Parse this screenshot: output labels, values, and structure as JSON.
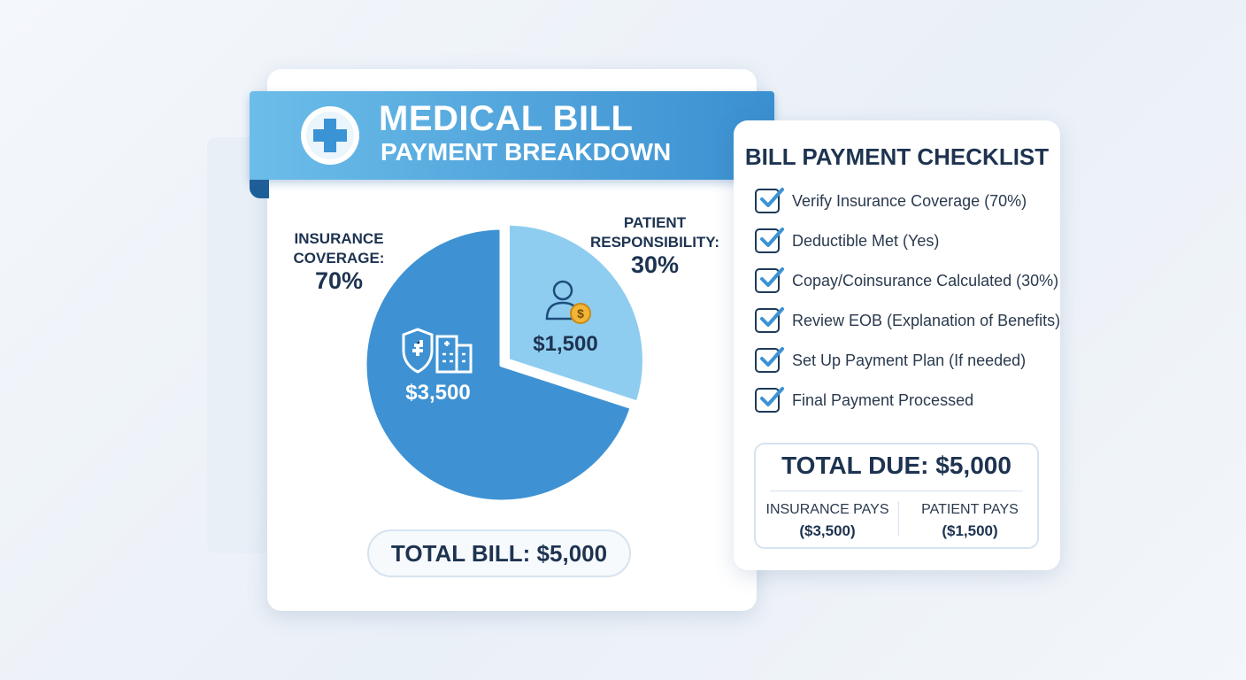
{
  "chart_data": {
    "type": "pie",
    "title": "MEDICAL BILL",
    "subtitle": "PAYMENT BREAKDOWN",
    "categories": [
      "INSURANCE COVERAGE:",
      "PATIENT RESPONSIBILITY:"
    ],
    "values": [
      70,
      30
    ],
    "value_labels": [
      "70%",
      "30%"
    ],
    "amounts": [
      "$3,500",
      "$1,500"
    ],
    "colors": [
      "#3e92d3",
      "#8fcdf0"
    ],
    "total_label": "TOTAL BILL: $5,000"
  },
  "checklist": {
    "title": "BILL PAYMENT CHECKLIST",
    "items": [
      "Verify Insurance Coverage (70%)",
      "Deductible Met (Yes)",
      "Copay/Coinsurance Calculated (30%)",
      "Review EOB (Explanation of Benefits)",
      "Set Up Payment Plan (If needed)",
      "Final Payment Processed"
    ],
    "total_due": "TOTAL DUE: $5,000",
    "split": [
      {
        "label": "INSURANCE PAYS",
        "amount": "($3,500)"
      },
      {
        "label": "PATIENT PAYS",
        "amount": "($1,500)"
      }
    ]
  }
}
